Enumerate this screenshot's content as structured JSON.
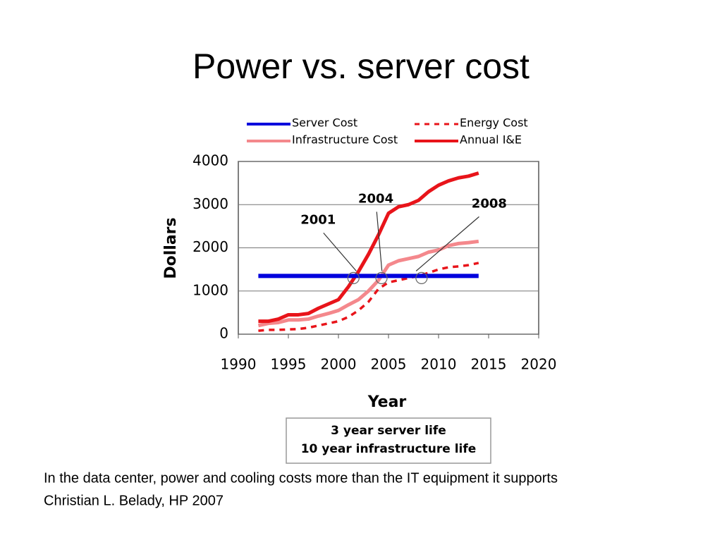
{
  "title": "Power vs. server cost",
  "caption": [
    "In the data center, power and cooling costs more than the IT equipment it supports",
    "Christian L. Belady, HP 2007"
  ],
  "chart_data": {
    "type": "line",
    "x": [
      1992,
      1993,
      1994,
      1995,
      1996,
      1997,
      1998,
      1999,
      2000,
      2001,
      2002,
      2003,
      2004,
      2005,
      2006,
      2007,
      2008,
      2009,
      2010,
      2011,
      2012,
      2013,
      2014
    ],
    "series": [
      {
        "name": "Server Cost",
        "color": "#0000dd",
        "style": "solid",
        "values": [
          1350,
          1350,
          1350,
          1350,
          1350,
          1350,
          1350,
          1350,
          1350,
          1350,
          1350,
          1350,
          1350,
          1350,
          1350,
          1350,
          1350,
          1350,
          1350,
          1350,
          1350,
          1350,
          1350
        ]
      },
      {
        "name": "Energy Cost",
        "color": "#e8141a",
        "style": "dashed",
        "values": [
          80,
          100,
          100,
          110,
          120,
          150,
          200,
          250,
          300,
          400,
          550,
          750,
          1050,
          1200,
          1250,
          1300,
          1350,
          1420,
          1500,
          1550,
          1570,
          1600,
          1650
        ]
      },
      {
        "name": "Infrastructure Cost",
        "color": "#f4888c",
        "style": "solid",
        "values": [
          200,
          250,
          270,
          330,
          330,
          350,
          420,
          480,
          550,
          680,
          800,
          1000,
          1250,
          1600,
          1700,
          1750,
          1800,
          1900,
          1950,
          2050,
          2100,
          2120,
          2150
        ]
      },
      {
        "name": "Annual I&E",
        "color": "#e8141a",
        "style": "solid",
        "values": [
          300,
          300,
          350,
          450,
          450,
          480,
          600,
          700,
          800,
          1100,
          1450,
          1850,
          2300,
          2800,
          2950,
          3000,
          3100,
          3300,
          3450,
          3550,
          3620,
          3660,
          3730
        ]
      }
    ],
    "xlim": [
      1990,
      2020
    ],
    "xticks": [
      1990,
      1995,
      2000,
      2005,
      2010,
      2015,
      2020
    ],
    "ylim": [
      0,
      4000
    ],
    "yticks": [
      0,
      1000,
      2000,
      3000,
      4000
    ],
    "grid": true,
    "xlabel": "Year",
    "ylabel": "Dollars",
    "annotations": [
      {
        "text": "2001",
        "x": 2001.5,
        "y": 1300
      },
      {
        "text": "2004",
        "x": 2004.3,
        "y": 1300
      },
      {
        "text": "2008",
        "x": 2008.3,
        "y": 1300
      }
    ],
    "note": [
      "3 year server life",
      "10 year infrastructure life"
    ]
  }
}
